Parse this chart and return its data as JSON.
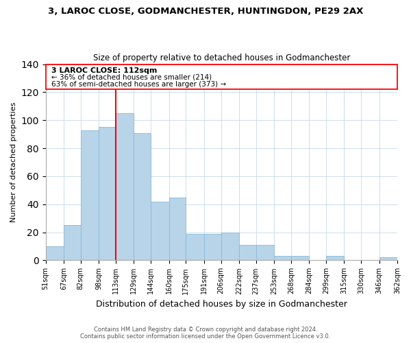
{
  "title1": "3, LAROC CLOSE, GODMANCHESTER, HUNTINGDON, PE29 2AX",
  "title2": "Size of property relative to detached houses in Godmanchester",
  "xlabel": "Distribution of detached houses by size in Godmanchester",
  "ylabel": "Number of detached properties",
  "bar_color": "#b8d4e8",
  "bar_edge_color": "#89b8d8",
  "vline_x": 113,
  "vline_color": "red",
  "annotation_title": "3 LAROC CLOSE: 112sqm",
  "annotation_line1": "← 36% of detached houses are smaller (214)",
  "annotation_line2": "63% of semi-detached houses are larger (373) →",
  "bin_edges": [
    51,
    67,
    82,
    98,
    113,
    129,
    144,
    160,
    175,
    191,
    206,
    222,
    237,
    253,
    268,
    284,
    299,
    315,
    330,
    346,
    362
  ],
  "bar_heights": [
    10,
    25,
    93,
    95,
    105,
    91,
    42,
    45,
    19,
    19,
    20,
    11,
    11,
    3,
    3,
    0,
    3,
    0,
    0,
    2
  ],
  "ylim": [
    0,
    140
  ],
  "yticks": [
    0,
    20,
    40,
    60,
    80,
    100,
    120,
    140
  ],
  "footer1": "Contains HM Land Registry data © Crown copyright and database right 2024.",
  "footer2": "Contains public sector information licensed under the Open Government Licence v3.0."
}
